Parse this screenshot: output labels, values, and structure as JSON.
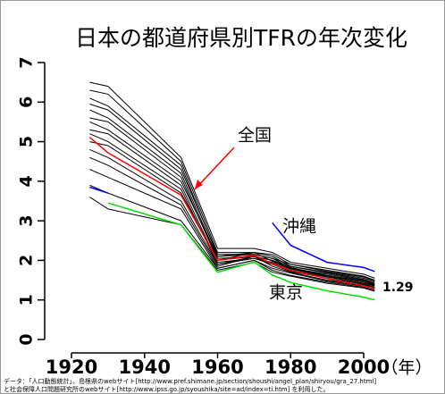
{
  "chart_data": {
    "type": "line",
    "title": "日本の都道府県別TFRの年次変化",
    "x": [
      1925,
      1930,
      1950,
      1960,
      1970,
      1975,
      1980,
      1990,
      2000,
      2003
    ],
    "xlim": [
      1920,
      2010
    ],
    "xticks": [
      1920,
      1940,
      1960,
      1980,
      2000
    ],
    "x_label": "（年）",
    "ylim": [
      0,
      7
    ],
    "yticks": [
      0,
      1,
      2,
      3,
      4,
      5,
      6,
      7
    ],
    "series": [
      {
        "color": "#000000",
        "values": [
          6.5,
          6.4,
          4.6,
          2.3,
          2.3,
          2.2,
          1.95,
          1.8,
          1.65,
          1.55
        ]
      },
      {
        "color": "#000000",
        "values": [
          6.3,
          6.2,
          4.5,
          2.2,
          2.2,
          2.15,
          1.9,
          1.75,
          1.6,
          1.5
        ]
      },
      {
        "color": "#000000",
        "values": [
          6.1,
          5.9,
          4.4,
          2.1,
          2.2,
          2.1,
          1.85,
          1.7,
          1.55,
          1.48
        ]
      },
      {
        "color": "#000000",
        "values": [
          5.95,
          5.8,
          4.3,
          2.15,
          2.15,
          2.05,
          1.9,
          1.72,
          1.58,
          1.5
        ]
      },
      {
        "color": "#000000",
        "values": [
          5.8,
          5.6,
          4.2,
          2.05,
          2.1,
          2.0,
          1.85,
          1.68,
          1.52,
          1.45
        ]
      },
      {
        "color": "#000000",
        "values": [
          5.6,
          5.5,
          4.1,
          2.0,
          2.1,
          2.0,
          1.8,
          1.65,
          1.5,
          1.42
        ]
      },
      {
        "color": "#000000",
        "values": [
          5.5,
          5.3,
          4.0,
          2.1,
          2.15,
          2.05,
          1.82,
          1.62,
          1.48,
          1.4
        ]
      },
      {
        "color": "#000000",
        "values": [
          5.3,
          5.2,
          3.9,
          1.95,
          2.05,
          1.95,
          1.78,
          1.6,
          1.45,
          1.38
        ]
      },
      {
        "color": "#000000",
        "values": [
          5.2,
          5.0,
          3.8,
          1.9,
          2.1,
          1.92,
          1.75,
          1.58,
          1.42,
          1.35
        ]
      },
      {
        "color": "#000000",
        "values": [
          5.0,
          4.9,
          3.7,
          2.0,
          2.2,
          1.98,
          1.8,
          1.6,
          1.45,
          1.36
        ]
      },
      {
        "color": "#000000",
        "values": [
          4.8,
          4.6,
          3.5,
          1.9,
          2.05,
          1.9,
          1.72,
          1.55,
          1.4,
          1.32
        ]
      },
      {
        "color": "#000000",
        "values": [
          4.6,
          4.4,
          3.4,
          1.85,
          2.1,
          1.85,
          1.7,
          1.5,
          1.38,
          1.3
        ]
      },
      {
        "color": "#000000",
        "values": [
          4.3,
          4.1,
          3.3,
          1.8,
          2.0,
          1.8,
          1.68,
          1.48,
          1.35,
          1.28
        ]
      },
      {
        "color": "#000000",
        "values": [
          3.9,
          3.7,
          3.0,
          1.8,
          2.0,
          1.75,
          1.62,
          1.45,
          1.32,
          1.25
        ]
      },
      {
        "color": "#000000",
        "values": [
          3.6,
          3.3,
          2.9,
          1.75,
          1.95,
          1.7,
          1.6,
          1.42,
          1.3,
          1.22
        ]
      },
      {
        "name": "全国",
        "color": "#ff0000",
        "values": [
          5.11,
          4.72,
          3.65,
          2.0,
          2.13,
          1.91,
          1.75,
          1.54,
          1.36,
          1.29
        ]
      },
      {
        "name": "沖縄",
        "color": "#0000ff",
        "values": [
          3.85,
          3.7,
          null,
          null,
          null,
          2.95,
          2.38,
          1.95,
          1.82,
          1.72
        ]
      },
      {
        "name": "東京",
        "color": "#00dd00",
        "values": [
          null,
          3.45,
          2.9,
          1.7,
          1.96,
          1.63,
          1.44,
          1.23,
          1.07,
          1.0
        ]
      }
    ],
    "annotations": [
      "1.29"
    ],
    "footnote": [
      "データ：「人口動態統計」。島根県のwebサイト[http://www.pref.shimane.jp/section/shoushi/angel_plan/shiryou/gra_27.html]",
      "と社会保障人口問題研究所のwebサイト[http://www.ipss.go.jp/syoushika/site=ad/index=ti.htm] を利用した。"
    ]
  }
}
